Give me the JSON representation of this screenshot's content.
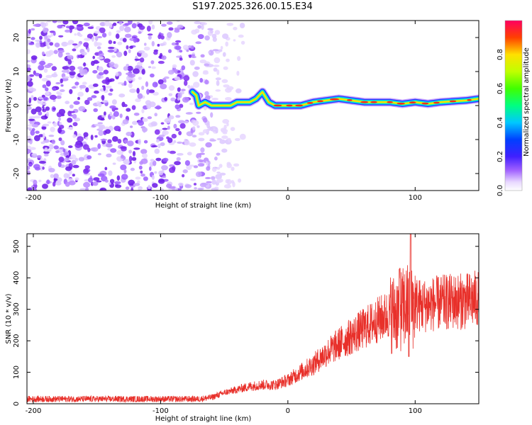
{
  "title": "S197.2025.326.00.15.E34",
  "chart_data": [
    {
      "type": "heatmap",
      "xlabel": "Height of straight line (km)",
      "ylabel": "Frequency (Hz)",
      "xlim": [
        -205,
        150
      ],
      "ylim": [
        -25,
        25
      ],
      "xticks": [
        -200,
        -100,
        0,
        100
      ],
      "yticks": [
        -20,
        -10,
        0,
        10,
        20
      ],
      "colorbar": {
        "label": "Normalized spectral amplitude",
        "range": [
          0,
          1
        ],
        "ticks": [
          0.0,
          0.2,
          0.4,
          0.6,
          0.8
        ]
      },
      "ridge": {
        "description": "dominant frequency trace",
        "points": [
          [
            -75,
            4
          ],
          [
            -72,
            3
          ],
          [
            -70,
            0
          ],
          [
            -65,
            1
          ],
          [
            -60,
            0
          ],
          [
            -55,
            0
          ],
          [
            -50,
            0
          ],
          [
            -45,
            0
          ],
          [
            -40,
            1
          ],
          [
            -30,
            1
          ],
          [
            -25,
            2
          ],
          [
            -20,
            4
          ],
          [
            -15,
            1
          ],
          [
            -10,
            0
          ],
          [
            -5,
            0
          ],
          [
            0,
            0
          ],
          [
            10,
            0
          ],
          [
            20,
            1
          ],
          [
            40,
            2
          ],
          [
            60,
            1
          ],
          [
            80,
            1
          ],
          [
            90,
            0.5
          ],
          [
            100,
            1
          ],
          [
            110,
            0.5
          ],
          [
            120,
            1
          ],
          [
            140,
            1.5
          ],
          [
            150,
            2
          ]
        ]
      },
      "noise_region_x": [
        -205,
        -60
      ]
    },
    {
      "type": "line",
      "xlabel": "Height of straight line (km)",
      "ylabel": "SNR (10 * v/v)",
      "xlim": [
        -205,
        150
      ],
      "ylim": [
        0,
        540
      ],
      "xticks": [
        -200,
        -100,
        0,
        100
      ],
      "yticks": [
        0,
        100,
        200,
        300,
        400,
        500
      ],
      "color": "#e8302a",
      "series": [
        {
          "name": "SNR",
          "x": [
            -205,
            -180,
            -150,
            -120,
            -90,
            -70,
            -60,
            -50,
            -40,
            -30,
            -20,
            -10,
            0,
            10,
            20,
            30,
            40,
            50,
            60,
            70,
            80,
            85,
            90,
            94,
            97,
            100,
            105,
            110,
            120,
            130,
            140,
            150
          ],
          "values": [
            15,
            15,
            15,
            15,
            15,
            15,
            20,
            35,
            45,
            55,
            60,
            60,
            75,
            100,
            125,
            160,
            190,
            215,
            240,
            265,
            285,
            290,
            300,
            310,
            300,
            320,
            310,
            315,
            320,
            325,
            325,
            335
          ]
        }
      ],
      "annotations": "large spikes near x=95 (up to ~540) and dip to ~150"
    }
  ]
}
